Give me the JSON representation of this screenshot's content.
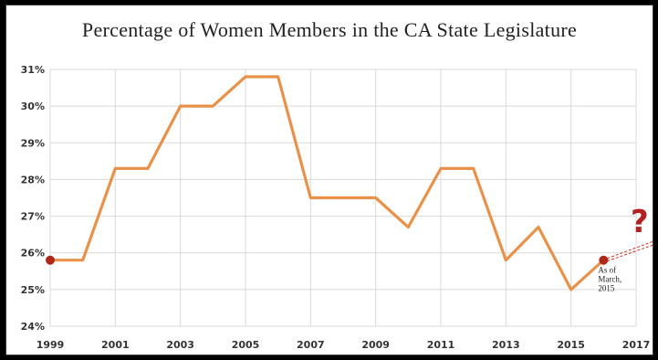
{
  "chart_data": {
    "type": "line",
    "title": "Percentage of Women Members in the CA State Legislature",
    "xlabel": "",
    "ylabel": "",
    "x": [
      1999,
      2000,
      2001,
      2002,
      2003,
      2004,
      2005,
      2006,
      2007,
      2008,
      2009,
      2010,
      2011,
      2012,
      2013,
      2014,
      2015,
      2016
    ],
    "values": [
      25.8,
      25.8,
      28.3,
      28.3,
      30.0,
      30.0,
      30.8,
      30.8,
      27.5,
      27.5,
      27.5,
      26.7,
      28.3,
      28.3,
      25.8,
      26.7,
      25.0,
      25.8
    ],
    "ylim": [
      24,
      31
    ],
    "xlim": [
      1999,
      2017
    ],
    "y_ticks": [
      "24%",
      "25%",
      "26%",
      "27%",
      "28%",
      "29%",
      "30%",
      "31%"
    ],
    "x_ticks": [
      "1999",
      "2001",
      "2003",
      "2005",
      "2007",
      "2009",
      "2011",
      "2013",
      "2015",
      "2017"
    ],
    "grid": true,
    "line_color": "#e8914a",
    "marker_color": "#b02818",
    "highlighted_points": [
      1999,
      2016
    ],
    "annotation": [
      "As of",
      "March,",
      "2015"
    ],
    "projection_mark": "?"
  }
}
